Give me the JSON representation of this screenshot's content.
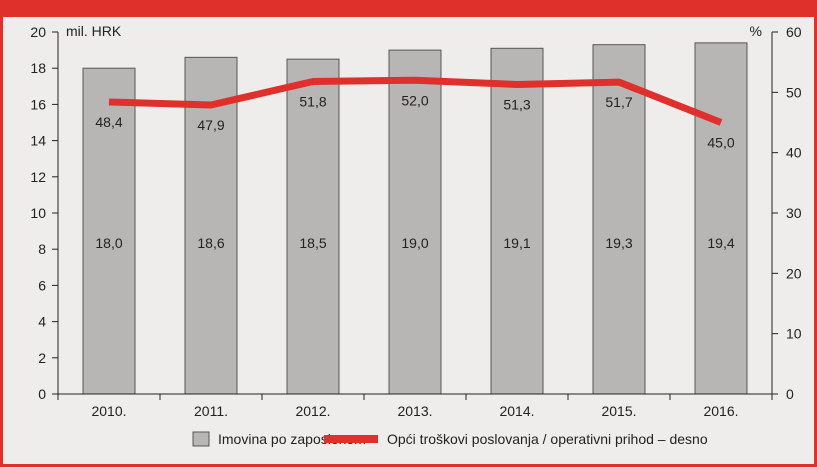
{
  "colors": {
    "accent": "#e0302b",
    "bar_fill": "#b7b6b5",
    "bar_stroke": "#555555",
    "line": "#e0302b",
    "background": "#eeedeb"
  },
  "chart_data": {
    "type": "bar",
    "categories": [
      "2010.",
      "2011.",
      "2012.",
      "2013.",
      "2014.",
      "2015.",
      "2016."
    ],
    "ylabel_left": "mil. HRK",
    "ylabel_right": "%",
    "ylim_left": [
      0,
      20
    ],
    "ylim_right": [
      0,
      60
    ],
    "yticks_left": [
      "0",
      "2",
      "4",
      "6",
      "8",
      "10",
      "12",
      "14",
      "16",
      "18",
      "20"
    ],
    "yticks_right": [
      "0",
      "10",
      "20",
      "30",
      "40",
      "50",
      "60"
    ],
    "series": [
      {
        "name": "Imovina po zaposlenom",
        "type": "bar",
        "axis": "left",
        "values": [
          18.0,
          18.6,
          18.5,
          19.0,
          19.1,
          19.3,
          19.4
        ],
        "labels": [
          "18,0",
          "18,6",
          "18,5",
          "19,0",
          "19,1",
          "19,3",
          "19,4"
        ]
      },
      {
        "name": "Opći troškovi poslovanja / operativni prihod – desno",
        "type": "line",
        "axis": "right",
        "values": [
          48.4,
          47.9,
          51.8,
          52.0,
          51.3,
          51.7,
          45.0
        ],
        "labels": [
          "48,4",
          "47,9",
          "51,8",
          "52,0",
          "51,3",
          "51,7",
          "45,0"
        ]
      }
    ],
    "legend_position": "bottom",
    "grid": false
  }
}
